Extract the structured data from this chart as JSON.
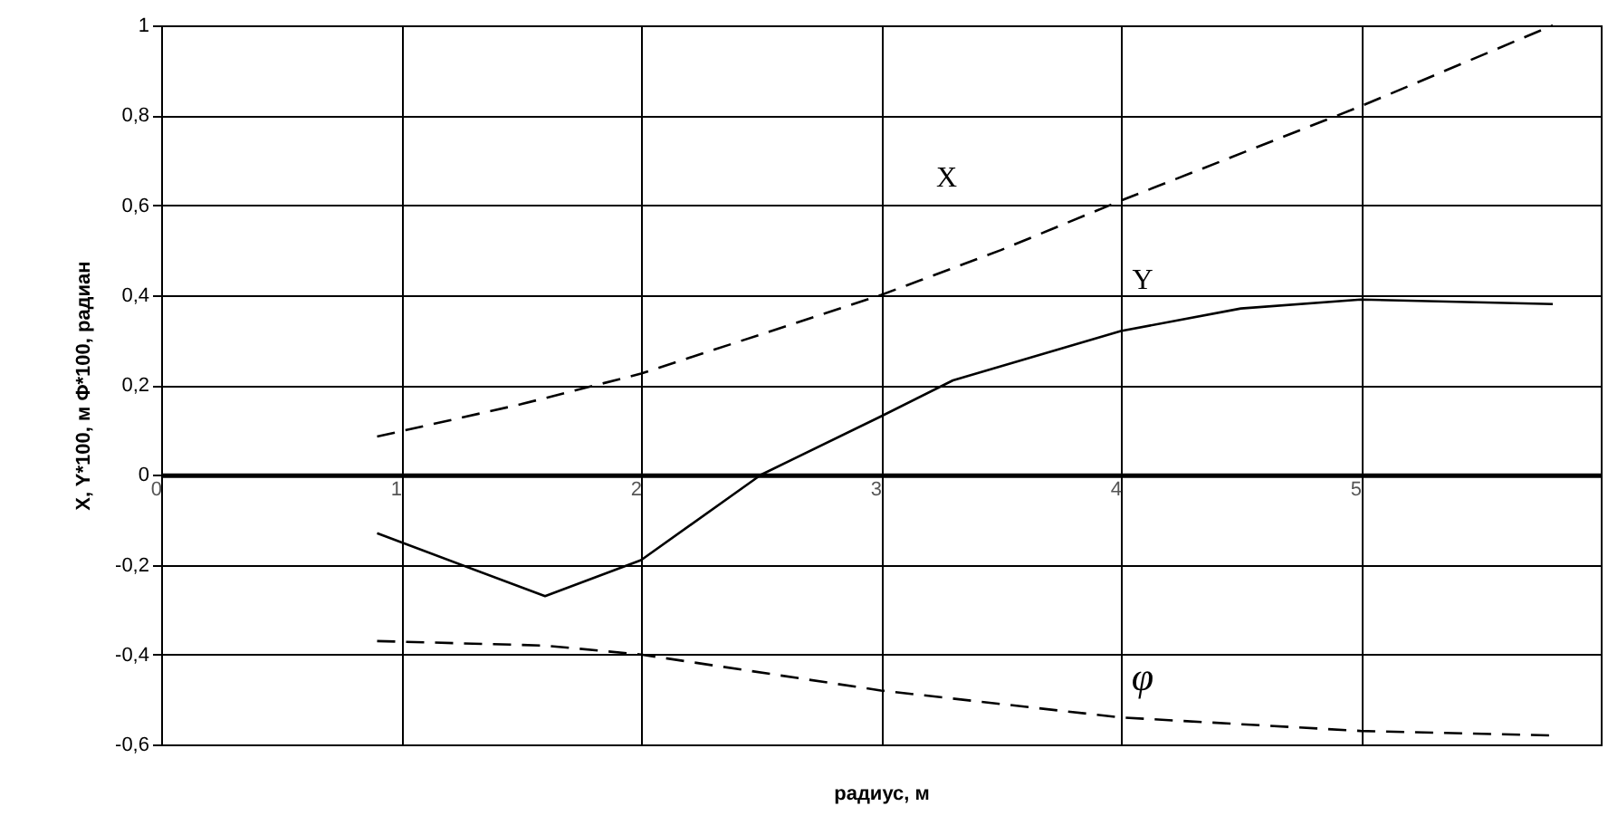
{
  "chart_data": {
    "type": "line",
    "xlabel": "радиус, м",
    "ylabel": "X, Y*100, м   Φ*100, радиан",
    "xlim": [
      0,
      6
    ],
    "xticks": [
      0,
      1,
      2,
      3,
      4,
      5
    ],
    "ylim": [
      -0.6,
      1
    ],
    "yticks": [
      {
        "value": -0.6,
        "label": "-0,6"
      },
      {
        "value": -0.4,
        "label": "-0,4"
      },
      {
        "value": -0.2,
        "label": "-0,2"
      },
      0,
      {
        "value": 0.2,
        "label": "0,2"
      },
      {
        "value": 0.4,
        "label": "0,4"
      },
      {
        "value": 0.6,
        "label": "0,6"
      },
      {
        "value": 0.8,
        "label": "0,8"
      },
      1
    ],
    "grid": true,
    "marker": "none",
    "series": [
      {
        "name": "X",
        "color": "#000000",
        "line_style": "dashed",
        "x": [
          0.9,
          1.5,
          2,
          3,
          3.5,
          4,
          5,
          5.8
        ],
        "values": [
          0.085,
          0.157,
          0.225,
          0.4,
          0.5,
          0.61,
          0.82,
          1.0
        ]
      },
      {
        "name": "Y",
        "color": "#000000",
        "line_style": "solid",
        "x": [
          0.9,
          1.6,
          2,
          2.5,
          3,
          3.3,
          4,
          4.5,
          5,
          5.8
        ],
        "values": [
          -0.13,
          -0.27,
          -0.19,
          0.0,
          0.13,
          0.21,
          0.32,
          0.37,
          0.39,
          0.38
        ]
      },
      {
        "name": "φ",
        "color": "#000000",
        "line_style": "dashed",
        "x": [
          0.9,
          1.6,
          2,
          3,
          4,
          5,
          5.8
        ],
        "values": [
          -0.37,
          -0.38,
          -0.4,
          -0.48,
          -0.54,
          -0.57,
          -0.58
        ]
      }
    ]
  }
}
